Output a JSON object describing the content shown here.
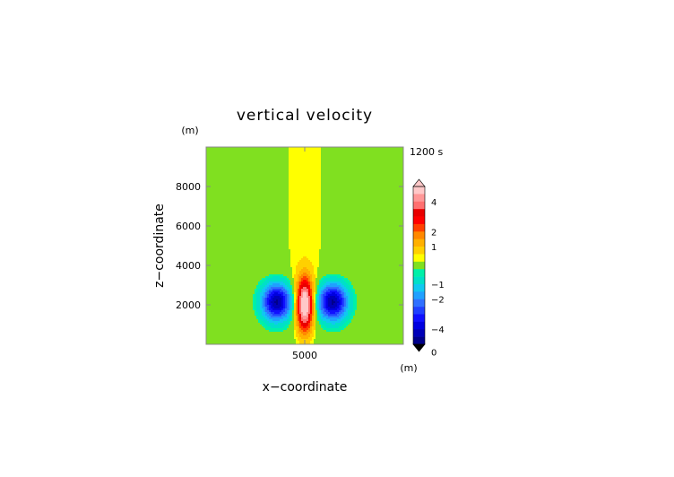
{
  "chart_data": {
    "type": "heatmap",
    "title": "vertical velocity",
    "xlabel": "x−coordinate",
    "ylabel": "z−coordinate",
    "x_unit": "(m)",
    "y_unit": "(m)",
    "time_label": "1200 s",
    "xlim": [
      0,
      10000
    ],
    "ylim": [
      0,
      10000
    ],
    "x_ticks": [
      5000
    ],
    "y_ticks": [
      2000,
      4000,
      6000,
      8000
    ],
    "colorbar": {
      "levels": [
        -5,
        -4.5,
        -4,
        -3.5,
        -3,
        -2.5,
        -2,
        -1.5,
        -1,
        -0.5,
        -0.25,
        0.25,
        0.5,
        1,
        1.5,
        2,
        2.5,
        3,
        3.5,
        4,
        4.5,
        5
      ],
      "colors": [
        "#00008a",
        "#0000b8",
        "#0000e0",
        "#1010ff",
        "#2040ff",
        "#3070ff",
        "#20a0ff",
        "#10c8f0",
        "#00e0c8",
        "#00f0a8",
        "#80e020",
        "#ffff00",
        "#ffd000",
        "#ffb000",
        "#ff8800",
        "#ff4000",
        "#ff0000",
        "#e80000",
        "#ff7070",
        "#ff9898",
        "#ffc8c8"
      ],
      "tick_values": [
        -4,
        -2,
        -1,
        0,
        1,
        2,
        4
      ],
      "tick_labels": [
        "−4",
        "−2",
        "−1",
        "0",
        "1",
        "2",
        "4"
      ]
    },
    "features": [
      {
        "kind": "updraft",
        "x": 5000,
        "z": 2000,
        "peak": 5
      },
      {
        "kind": "downdraft",
        "x": 3600,
        "z": 2200,
        "peak": -4
      },
      {
        "kind": "downdraft",
        "x": 6400,
        "z": 2200,
        "peak": -4
      }
    ]
  }
}
